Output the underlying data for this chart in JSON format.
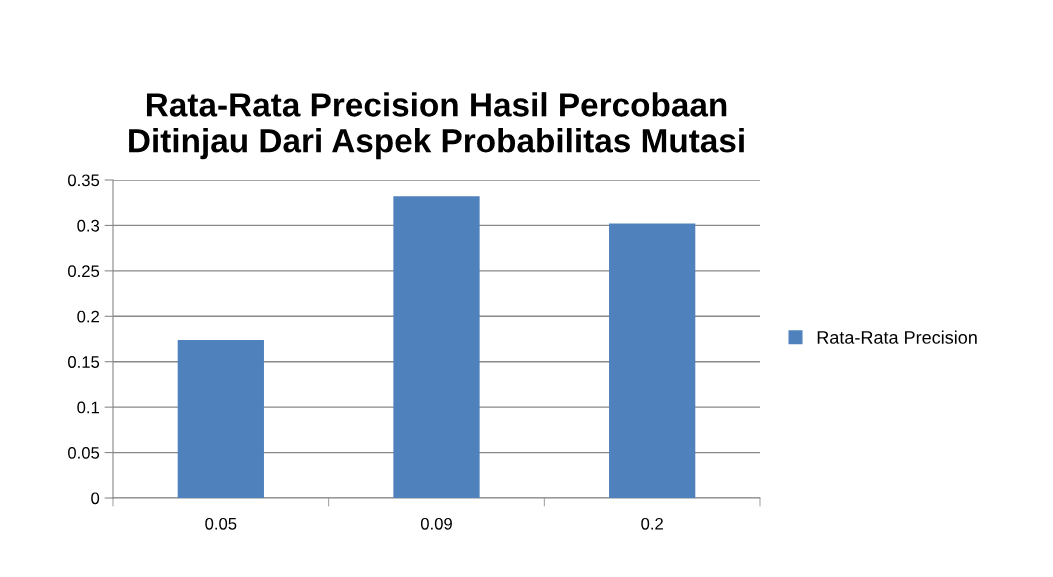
{
  "chart_data": {
    "type": "bar",
    "title": "Rata-Rata Precision Hasil Percobaan\nDitinjau Dari Aspek Probabilitas Mutasi",
    "categories": [
      "0.05",
      "0.09",
      "0.2"
    ],
    "series": [
      {
        "name": "Rata-Rata Precision",
        "color": "#4f81bd",
        "values": [
          0.174,
          0.332,
          0.302
        ]
      }
    ],
    "ylim": [
      0,
      0.35
    ],
    "yticks": [
      0,
      0.05,
      0.1,
      0.15,
      0.2,
      0.25,
      0.3,
      0.35
    ],
    "grid": "y",
    "legend": "right"
  }
}
